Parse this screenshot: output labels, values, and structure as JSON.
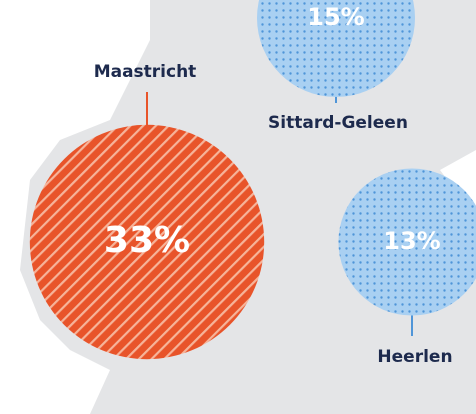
{
  "chart_data": {
    "type": "bubble",
    "categories": [
      "Maastricht",
      "Sittard-Geleen",
      "Heerlen"
    ],
    "values": [
      33,
      15,
      13
    ],
    "value_labels": [
      "33%",
      "15%",
      "13%"
    ],
    "colors": [
      "#e8542a",
      "#a9d0f2",
      "#a9d0f2"
    ]
  }
}
